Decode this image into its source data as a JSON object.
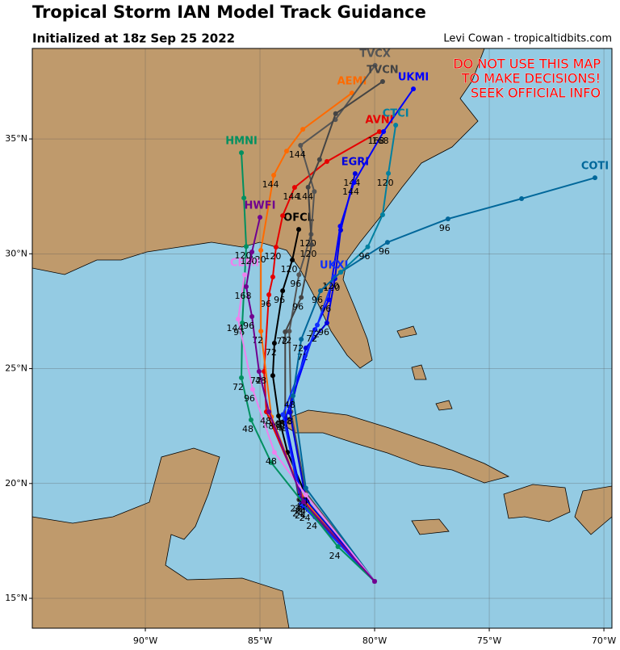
{
  "chart_data": {
    "type": "track-map",
    "title": "Tropical Storm IAN Model Track Guidance",
    "subtitle": "Initialized at 18z Sep 25 2022",
    "credit": "Levi Cowan - tropicaltidbits.com",
    "warning": [
      "DO NOT USE THIS MAP",
      "TO MAKE DECISIONS!",
      "SEEK OFFICIAL INFO"
    ],
    "xlim": [
      -94.93,
      -69.65
    ],
    "ylim": [
      13.7,
      38.94
    ],
    "xticks": [
      {
        "value": -90,
        "label": "90°W"
      },
      {
        "value": -85,
        "label": "85°W"
      },
      {
        "value": -80,
        "label": "80°W"
      },
      {
        "value": -75,
        "label": "75°W"
      },
      {
        "value": -70,
        "label": "70°W"
      }
    ],
    "yticks": [
      {
        "value": 15,
        "label": "15°N"
      },
      {
        "value": 20,
        "label": "20°N"
      },
      {
        "value": 25,
        "label": "25°N"
      },
      {
        "value": 30,
        "label": "30°N"
      },
      {
        "value": 35,
        "label": "35°N"
      }
    ],
    "grid": true,
    "series": [
      {
        "name": "OFCL",
        "color": "#000000",
        "lon": [
          -80.0,
          -82.6,
          -83.8,
          -84.19,
          -84.44,
          -84.37,
          -84.01,
          -83.59,
          -83.31
        ],
        "lat": [
          15.74,
          18.55,
          21.36,
          22.94,
          24.7,
          26.11,
          28.39,
          29.73,
          31.06
        ],
        "hours": [
          null,
          24,
          null,
          48,
          null,
          72,
          96,
          120,
          null
        ]
      },
      {
        "name": "AVNI",
        "color": "#e60000",
        "lon": [
          -80.0,
          -82.9,
          -84.72,
          -84.82,
          -84.61,
          -84.44,
          -84.3,
          -84.01,
          -83.49,
          -82.08,
          -79.79
        ],
        "lat": [
          15.74,
          18.9,
          23.12,
          24.88,
          28.22,
          28.99,
          30.29,
          31.66,
          32.89,
          34.02,
          35.32
        ],
        "hours": [
          null,
          24,
          null,
          48,
          96,
          null,
          120,
          null,
          144,
          null,
          168
        ]
      },
      {
        "name": "AEMI",
        "color": "#ff6a00",
        "lon": [
          -80.0,
          -83.1,
          -84.5,
          -84.96,
          -84.96,
          -84.4,
          -83.84,
          -83.13,
          -80.99
        ],
        "lat": [
          15.74,
          19.3,
          22.9,
          26.63,
          30.15,
          33.42,
          34.47,
          35.42,
          37.0
        ],
        "hours": [
          null,
          24,
          48,
          72,
          120,
          144,
          null,
          null,
          null
        ]
      },
      {
        "name": "TVCX",
        "color": "#555555",
        "lon": [
          -80.0,
          -83.0,
          -83.65,
          -83.72,
          -83.3,
          -82.77,
          -82.63,
          -83.23,
          -81.71,
          -79.98
        ],
        "lat": [
          15.74,
          19.6,
          23.12,
          26.63,
          29.09,
          30.85,
          32.71,
          34.72,
          35.84,
          38.2
        ],
        "hours": [
          null,
          24,
          48,
          72,
          96,
          120,
          null,
          144,
          null,
          null
        ]
      },
      {
        "name": "TVCN",
        "color": "#444444",
        "lon": [
          -80.0,
          -83.3,
          -83.9,
          -83.9,
          -83.2,
          -82.75,
          -82.9,
          -82.4,
          -81.7,
          -79.65
        ],
        "lat": [
          15.74,
          19.3,
          22.9,
          26.6,
          28.1,
          30.4,
          32.9,
          34.1,
          36.1,
          37.5
        ],
        "hours": [
          null,
          24,
          48,
          72,
          96,
          120,
          144,
          null,
          null,
          null
        ]
      },
      {
        "name": "EGRI",
        "color": "#0000e0",
        "lon": [
          -80.0,
          -83.0,
          -83.7,
          -83.0,
          -82.08,
          -81.73,
          -81.48,
          -80.85
        ],
        "lat": [
          15.74,
          19.3,
          23.1,
          25.9,
          26.99,
          28.92,
          31.03,
          33.49
        ],
        "hours": [
          null,
          24,
          48,
          72,
          96,
          120,
          null,
          144
        ]
      },
      {
        "name": "UKMI",
        "color": "#0000ff",
        "lon": [
          -80.0,
          -83.1,
          -83.9,
          -82.6,
          -82.0,
          -81.5,
          -80.9,
          -79.61,
          -78.31
        ],
        "lat": [
          15.74,
          19.0,
          22.8,
          26.7,
          28.0,
          31.2,
          33.1,
          35.32,
          37.18
        ],
        "hours": [
          null,
          24,
          48,
          72,
          96,
          null,
          144,
          168,
          null
        ]
      },
      {
        "name": "UKXI",
        "color": "#1030ff",
        "lon": [
          -80.0,
          -83.2,
          -84.0,
          -82.5,
          -81.77
        ],
        "lat": [
          15.74,
          19.1,
          23.0,
          26.9,
          29.0
        ],
        "hours": [
          null,
          24,
          48,
          72,
          120
        ]
      },
      {
        "name": "COTI",
        "color": "#00679a",
        "lon": [
          -80.0,
          -83.0,
          -83.56,
          -83.2,
          -82.36,
          -81.48,
          -79.44,
          -76.8,
          -73.59,
          -70.39
        ],
        "lat": [
          15.74,
          19.8,
          23.82,
          26.28,
          28.39,
          29.2,
          30.5,
          31.52,
          32.4,
          33.31
        ],
        "hours": [
          null,
          24,
          48,
          72,
          96,
          null,
          96,
          96,
          null,
          null
        ]
      },
      {
        "name": "CTCI",
        "color": "#0080a0",
        "lon": [
          -81.48,
          -80.3,
          -79.65,
          -79.4,
          -79.08
        ],
        "lat": [
          29.2,
          30.3,
          31.7,
          33.5,
          35.6
        ],
        "hours": [
          null,
          96,
          null,
          120,
          null
        ]
      },
      {
        "name": "HMNI",
        "color": "#009060",
        "lon": [
          -80.0,
          -81.6,
          -84.51,
          -85.39,
          -85.81,
          -85.77,
          -85.6,
          -85.7,
          -85.81
        ],
        "lat": [
          15.74,
          17.25,
          20.91,
          22.77,
          24.6,
          26.99,
          30.32,
          32.43,
          34.4
        ],
        "hours": [
          null,
          24,
          null,
          48,
          72,
          96,
          120,
          null,
          null
        ]
      },
      {
        "name": "CEMI",
        "color": "#ee80ee",
        "lon": [
          -80.0,
          -83.0,
          -84.37,
          -85.32,
          -85.95,
          -85.67
        ],
        "lat": [
          15.74,
          19.5,
          21.36,
          24.1,
          27.16,
          29.09
        ],
        "hours": [
          null,
          24,
          48,
          96,
          144,
          null
        ]
      },
      {
        "name": "HWFI",
        "color": "#700090",
        "lon": [
          -80.0,
          -83.1,
          -84.61,
          -85.04,
          -85.35,
          -85.6,
          -85.35,
          -85.0
        ],
        "lat": [
          15.74,
          19.2,
          23.12,
          24.88,
          27.27,
          28.57,
          30.08,
          31.59
        ],
        "hours": [
          null,
          24,
          48,
          72,
          96,
          168,
          120,
          null
        ]
      }
    ]
  }
}
